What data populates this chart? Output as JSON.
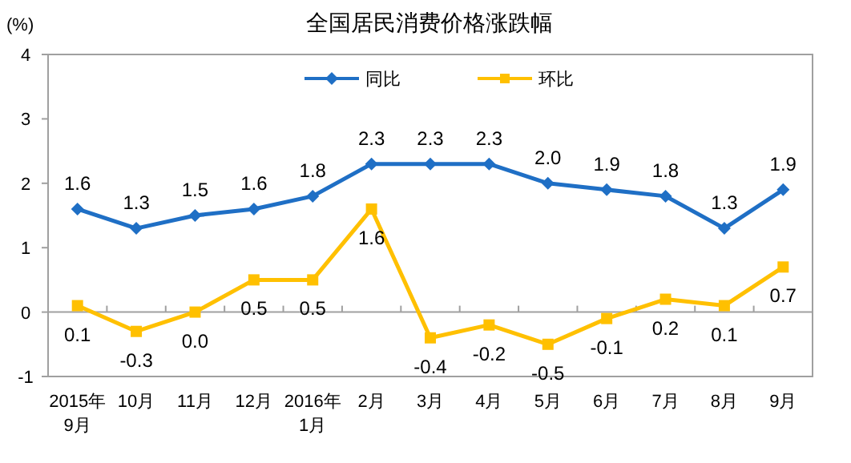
{
  "chart_data": {
    "type": "line",
    "title": "全国居民消费价格涨跌幅",
    "ylabel": "(%)",
    "categories": [
      "2015年\n9月",
      "10月",
      "11月",
      "12月",
      "2016年\n1月",
      "2月",
      "3月",
      "4月",
      "5月",
      "6月",
      "7月",
      "8月",
      "9月"
    ],
    "series": [
      {
        "name": "同比",
        "color": "#1f6fc5",
        "marker": "diamond",
        "values": [
          1.6,
          1.3,
          1.5,
          1.6,
          1.8,
          2.3,
          2.3,
          2.3,
          2.0,
          1.9,
          1.8,
          1.3,
          1.9
        ],
        "value_labels": [
          "1.6",
          "1.3",
          "1.5",
          "1.6",
          "1.8",
          "2.3",
          "2.3",
          "2.3",
          "2.0",
          "1.9",
          "1.8",
          "1.3",
          "1.9"
        ]
      },
      {
        "name": "环比",
        "color": "#ffc000",
        "marker": "square",
        "values": [
          0.1,
          -0.3,
          0.0,
          0.5,
          0.5,
          1.6,
          -0.4,
          -0.2,
          -0.5,
          -0.1,
          0.2,
          0.1,
          0.7
        ],
        "value_labels": [
          "0.1",
          "-0.3",
          "0.0",
          "0.5",
          "0.5",
          "1.6",
          "-0.4",
          "-0.2",
          "-0.5",
          "-0.1",
          "0.2",
          "0.1",
          "0.7"
        ]
      }
    ],
    "ylim": [
      -1,
      4
    ],
    "yticks": [
      -1,
      0,
      1,
      2,
      3,
      4
    ],
    "legend": "top"
  }
}
